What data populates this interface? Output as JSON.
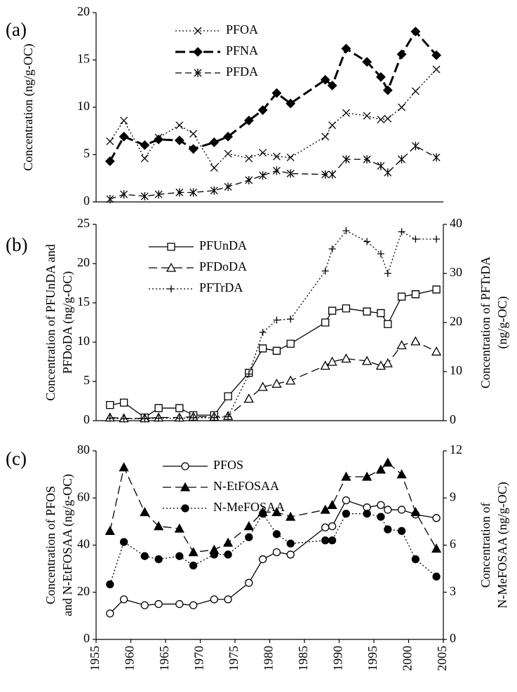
{
  "chart_data": [
    {
      "type": "line",
      "panel_label": "(a)",
      "ylabel": [
        "Concentration (ng/g-OC)"
      ],
      "x": [
        1957,
        1959,
        1962,
        1964,
        1967,
        1969,
        1972,
        1974,
        1977,
        1979,
        1981,
        1983,
        1988,
        1989,
        1991,
        1994,
        1996,
        1997,
        1999,
        2001,
        2004
      ],
      "xlim": [
        1955,
        2005
      ],
      "ylim": [
        0,
        20
      ],
      "yticks": [
        0,
        5,
        10,
        15,
        20
      ],
      "series": [
        {
          "name": "PFOA",
          "color": "#000000",
          "marker": "x",
          "line": "dotted",
          "values": [
            6.4,
            8.6,
            4.6,
            6.8,
            8.1,
            7.2,
            3.6,
            5.1,
            4.6,
            5.2,
            4.8,
            4.7,
            6.9,
            8.1,
            9.4,
            9.1,
            8.7,
            8.8,
            10.0,
            11.7,
            14.0
          ]
        },
        {
          "name": "PFNA",
          "color": "#000000",
          "marker": "diamond-filled",
          "line": "thick-dashed",
          "values": [
            4.3,
            6.9,
            6.0,
            6.6,
            6.5,
            5.6,
            6.3,
            6.9,
            8.6,
            9.7,
            11.5,
            10.4,
            12.9,
            12.3,
            16.2,
            14.8,
            13.2,
            11.8,
            15.6,
            18.0,
            15.5
          ]
        },
        {
          "name": "PFDA",
          "color": "#000000",
          "marker": "asterisk",
          "line": "dashed",
          "values": [
            0.3,
            0.8,
            0.6,
            0.8,
            1.0,
            1.0,
            1.2,
            1.6,
            2.3,
            2.8,
            3.3,
            3.0,
            2.9,
            2.9,
            4.5,
            4.5,
            3.8,
            3.1,
            4.5,
            5.9,
            4.7
          ]
        }
      ]
    },
    {
      "type": "line",
      "panel_label": "(b)",
      "ylabel": [
        "Concentration of PFUnDA and",
        "PFDoDA (ng/g-OC)"
      ],
      "y2label": [
        "Concentration of PFTrDA",
        "(ng/g-OC)"
      ],
      "x": [
        1957,
        1959,
        1962,
        1964,
        1967,
        1969,
        1972,
        1974,
        1977,
        1979,
        1981,
        1983,
        1988,
        1989,
        1991,
        1994,
        1996,
        1997,
        1999,
        2001,
        2004
      ],
      "xlim": [
        1955,
        2005
      ],
      "ylim": [
        0,
        25
      ],
      "yticks": [
        0,
        5,
        10,
        15,
        20,
        25
      ],
      "y2lim": [
        0,
        40
      ],
      "y2ticks": [
        0,
        10,
        20,
        30,
        40
      ],
      "series": [
        {
          "name": "PFUnDA",
          "color": "#000000",
          "marker": "square",
          "line": "solid",
          "values": [
            2.0,
            2.3,
            0.4,
            1.6,
            1.6,
            0.7,
            0.7,
            3.1,
            6.1,
            9.2,
            8.9,
            9.8,
            12.5,
            14.0,
            14.3,
            13.9,
            13.7,
            12.3,
            15.8,
            16.1,
            16.7
          ]
        },
        {
          "name": "PFDoDA",
          "color": "#000000",
          "marker": "triangle",
          "line": "long-dashed",
          "values": [
            0.4,
            0.3,
            0.3,
            0.4,
            0.4,
            0.5,
            0.5,
            0.6,
            2.8,
            4.3,
            4.7,
            5.1,
            7.0,
            7.5,
            7.9,
            7.6,
            7.0,
            7.3,
            9.6,
            10.1,
            8.8
          ]
        },
        {
          "name": "PFTrDA",
          "color": "#000000",
          "marker": "plus",
          "line": "dotted",
          "axis": "y2",
          "values": [
            0.5,
            0.4,
            0.4,
            0.5,
            0.5,
            0.6,
            0.6,
            0.8,
            9.5,
            18.0,
            20.5,
            20.7,
            30.5,
            35.0,
            38.7,
            36.5,
            34.0,
            30.0,
            38.5,
            37.0,
            37.0
          ]
        }
      ]
    },
    {
      "type": "line",
      "panel_label": "(c)",
      "ylabel": [
        "Concentration of PFOS",
        "and N-EtFOSAA (ng/g-OC)"
      ],
      "y2label": [
        "Concentration of",
        "N-MeFOSAA (ng/g-OC)"
      ],
      "x": [
        1957,
        1959,
        1962,
        1964,
        1967,
        1969,
        1972,
        1974,
        1977,
        1979,
        1981,
        1983,
        1988,
        1989,
        1991,
        1994,
        1996,
        1997,
        1999,
        2001,
        2004
      ],
      "xlim": [
        1955,
        2005
      ],
      "xticks": [
        1955,
        1960,
        1965,
        1970,
        1975,
        1980,
        1985,
        1990,
        1995,
        2000,
        2005
      ],
      "ylim": [
        0,
        80
      ],
      "yticks": [
        0,
        20,
        40,
        60,
        80
      ],
      "y2lim": [
        0,
        12
      ],
      "y2ticks": [
        0,
        3,
        6,
        9,
        12
      ],
      "series": [
        {
          "name": "PFOS",
          "color": "#000000",
          "marker": "circle",
          "line": "solid",
          "values": [
            11,
            17,
            14.5,
            15,
            15,
            14.5,
            17,
            17,
            24,
            34,
            37,
            36,
            47.5,
            48,
            59,
            56,
            57,
            55,
            55,
            53,
            51.5
          ]
        },
        {
          "name": "N-EtFOSAA",
          "color": "#000000",
          "marker": "triangle-filled",
          "line": "long-dashed",
          "values": [
            46,
            73,
            54,
            48,
            47,
            37,
            38,
            41,
            48,
            54,
            54,
            52,
            55,
            57,
            69,
            69,
            72,
            75,
            70,
            54,
            38.5
          ]
        },
        {
          "name": "N-MeFOSAA",
          "color": "#000000",
          "marker": "circle-filled",
          "line": "dotted",
          "axis": "y2",
          "values": [
            3.5,
            6.2,
            5.3,
            5.1,
            5.3,
            4.7,
            5.4,
            5.4,
            6.5,
            8.0,
            6.7,
            6.1,
            6.3,
            6.3,
            8.0,
            8.0,
            7.8,
            7.0,
            6.9,
            5.1,
            4.0
          ]
        }
      ]
    }
  ]
}
